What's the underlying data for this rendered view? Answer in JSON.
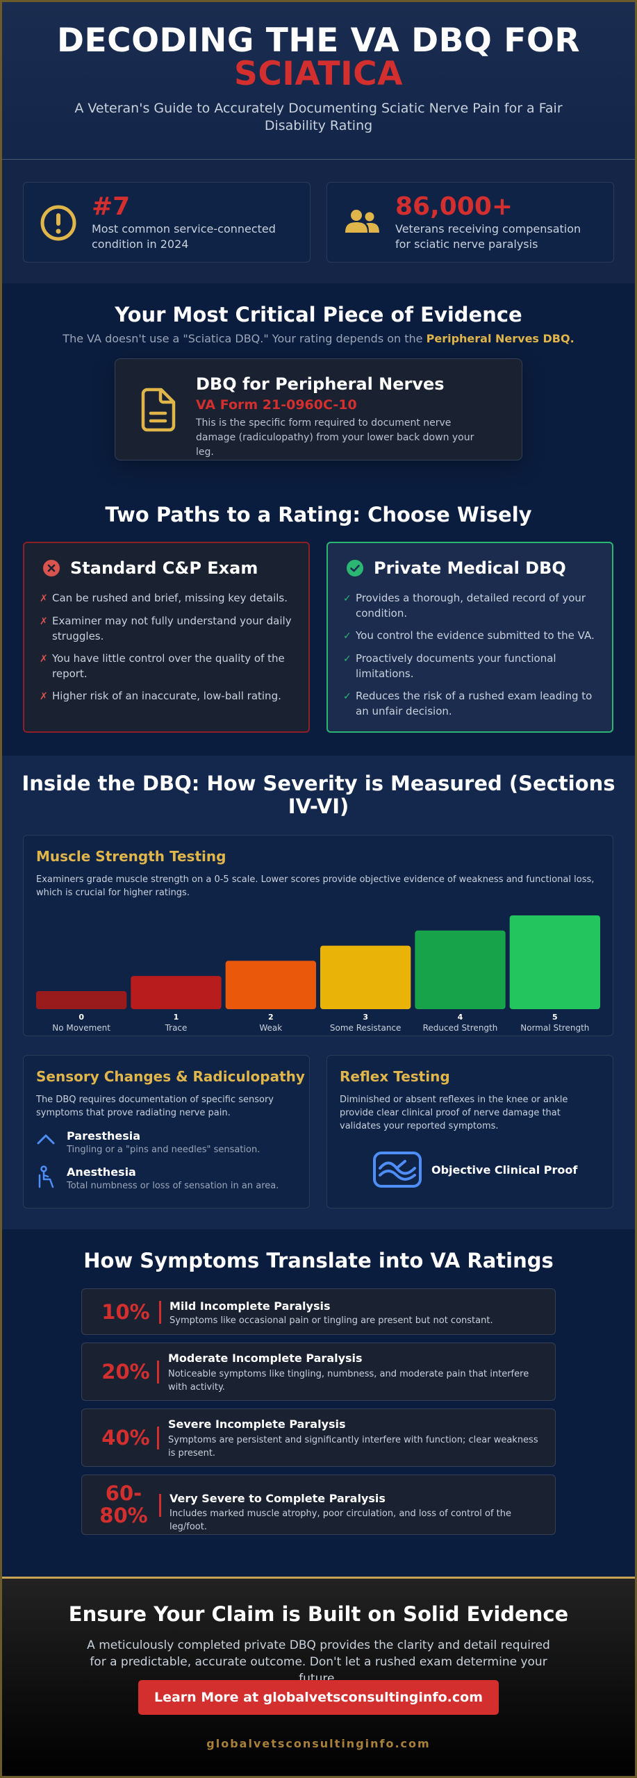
{
  "header": {
    "title_line1": "DECODING THE VA DBQ FOR",
    "title_line2": "SCIATICA",
    "subtitle": "A Veteran's Guide to Accurately Documenting Sciatic Nerve Pain for a Fair Disability Rating"
  },
  "stats": [
    {
      "icon": "alert-circle-icon",
      "value": "#7",
      "desc": "Most common service-connected condition in 2024"
    },
    {
      "icon": "people-icon",
      "value": "86,000+",
      "desc": "Veterans receiving compensation for sciatic nerve paralysis"
    }
  ],
  "evidence": {
    "title": "Your Most Critical Piece of Evidence",
    "subtitle_pre": "The VA doesn't use a \"Sciatica DBQ.\" Your rating depends on the",
    "subtitle_bold": "Peripheral Nerves DBQ.",
    "card_title": "DBQ for Peripheral Nerves",
    "card_form": "VA Form 21-0960C-10",
    "card_desc": "This is the specific form required to document nerve damage (radiculopathy) from your lower back down your leg."
  },
  "paths": {
    "title": "Two Paths to a Rating: Choose Wisely",
    "standard": {
      "title": "Standard C&P Exam",
      "items": [
        "Can be rushed and brief, missing key details.",
        "Examiner may not fully understand your daily struggles.",
        "You have little control over the quality of the report.",
        "Higher risk of an inaccurate, low-ball rating."
      ]
    },
    "private": {
      "title": "Private Medical DBQ",
      "items": [
        "Provides a thorough, detailed record of your condition.",
        "You control the evidence submitted to the VA.",
        "Proactively documents your functional limitations.",
        "Reduces the risk of a rushed exam leading to an unfair decision."
      ]
    }
  },
  "severity": {
    "title": "Inside the DBQ: How Severity is Measured (Sections IV-VI)",
    "muscle": {
      "title": "Muscle Strength Testing",
      "desc": "Examiners grade muscle strength on a 0-5 scale. Lower scores provide objective evidence of weakness and functional loss, which is crucial for higher ratings."
    },
    "sensory": {
      "title": "Sensory Changes & Radiculopathy",
      "desc": "The DBQ requires documentation of specific sensory symptoms that prove radiating nerve pain.",
      "items": [
        {
          "icon": "chevron-up-icon",
          "title": "Paresthesia",
          "desc": "Tingling or a \"pins and needles\" sensation."
        },
        {
          "icon": "person-sitting-icon",
          "title": "Anesthesia",
          "desc": "Total numbness or loss of sensation in an area."
        }
      ]
    },
    "reflex": {
      "title": "Reflex Testing",
      "desc": "Diminished or absent reflexes in the knee or ankle provide clear clinical proof of nerve damage that validates your reported symptoms.",
      "proof_label": "Objective Clinical Proof"
    }
  },
  "chart_data": {
    "type": "bar",
    "categories": [
      "No Movement",
      "Trace",
      "Weak",
      "Some Resistance",
      "Reduced Strength",
      "Normal Strength"
    ],
    "grades": [
      "0",
      "1",
      "2",
      "3",
      "4",
      "5"
    ],
    "values": [
      0,
      1,
      2,
      3,
      4,
      5
    ],
    "colors": [
      "#991b1b",
      "#b91c1c",
      "#ea580c",
      "#eab308",
      "#16a34a",
      "#22c55e"
    ],
    "ylim": [
      0,
      5
    ],
    "grid": false,
    "legend": "none"
  },
  "ratings": {
    "title": "How Symptoms Translate into VA Ratings",
    "items": [
      {
        "pct": "10%",
        "title": "Mild Incomplete Paralysis",
        "desc": "Symptoms like occasional pain or tingling are present but not constant."
      },
      {
        "pct": "20%",
        "title": "Moderate Incomplete Paralysis",
        "desc": "Noticeable symptoms like tingling, numbness, and moderate pain that interfere with activity."
      },
      {
        "pct": "40%",
        "title": "Severe Incomplete Paralysis",
        "desc": "Symptoms are persistent and significantly interfere with function; clear weakness is present."
      },
      {
        "pct": "60-80%",
        "title": "Very Severe to Complete Paralysis",
        "desc": "Includes marked muscle atrophy, poor circulation, and loss of control of the leg/foot."
      }
    ]
  },
  "footer": {
    "title": "Ensure Your Claim is Built on Solid Evidence",
    "desc": "A meticulously completed private DBQ provides the clarity and detail required for a predictable, accurate outcome. Don't let a rushed exam determine your future.",
    "cta": "Learn More at globalvetsconsultinginfo.com",
    "site": "globalvetsconsultinginfo.com"
  },
  "colors": {
    "accent_red": "#d32f2f",
    "accent_gold": "#e0b64a",
    "accent_green": "#2bb673",
    "background": "#0b1d3e"
  }
}
